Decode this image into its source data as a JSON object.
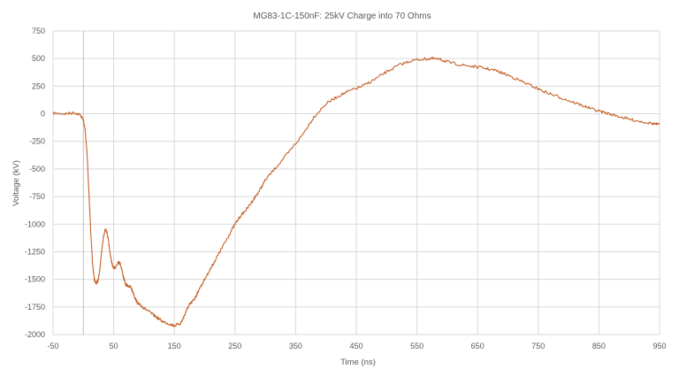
{
  "chart_data": {
    "type": "line",
    "title": "MG83-1C-150nF: 25kV Charge into 70 Ohms",
    "xlabel": "Time (ns)",
    "ylabel": "Voltage (kV)",
    "xlim": [
      -50,
      950
    ],
    "ylim": [
      -2000,
      750
    ],
    "x_ticks": [
      -50,
      50,
      150,
      250,
      350,
      450,
      550,
      650,
      750,
      850,
      950
    ],
    "y_ticks": [
      750,
      500,
      250,
      0,
      -250,
      -500,
      -750,
      -1000,
      -1250,
      -1500,
      -1750,
      -2000
    ],
    "x_tick_labels": [
      "-50",
      "50",
      "150",
      "250",
      "350",
      "450",
      "550",
      "650",
      "750",
      "850",
      "950"
    ],
    "y_tick_labels": [
      "750",
      "500",
      "250",
      "0",
      "-250",
      "-500",
      "-750",
      "-1000",
      "-1250",
      "-1500",
      "-1750",
      "-2000"
    ],
    "grid": true,
    "series_color": "#C5622A",
    "series": [
      {
        "x": [
          -50,
          -30,
          -15,
          -5,
          0,
          3,
          6,
          9,
          12,
          15,
          18,
          21,
          24,
          27,
          30,
          33,
          36,
          39,
          42,
          45,
          48,
          51,
          54,
          57,
          60,
          63,
          66,
          70,
          74,
          78,
          82,
          86,
          90,
          95,
          100,
          110,
          120,
          130,
          140,
          150,
          160,
          165,
          170,
          175,
          180,
          185,
          190,
          200,
          210,
          220,
          230,
          240,
          250,
          260,
          270,
          280,
          290,
          300,
          320,
          340,
          360,
          380,
          400,
          420,
          440,
          460,
          480,
          500,
          520,
          540,
          560,
          575,
          590,
          600,
          620,
          640,
          660,
          680,
          700,
          720,
          740,
          760,
          780,
          800,
          820,
          840,
          860,
          880,
          900,
          920,
          940,
          950
        ],
        "y": [
          5,
          0,
          10,
          -10,
          -60,
          -150,
          -350,
          -700,
          -1050,
          -1350,
          -1500,
          -1540,
          -1510,
          -1420,
          -1250,
          -1120,
          -1050,
          -1070,
          -1180,
          -1300,
          -1380,
          -1400,
          -1380,
          -1345,
          -1350,
          -1400,
          -1480,
          -1550,
          -1560,
          -1570,
          -1620,
          -1680,
          -1720,
          -1740,
          -1760,
          -1800,
          -1840,
          -1880,
          -1900,
          -1920,
          -1900,
          -1850,
          -1780,
          -1730,
          -1700,
          -1660,
          -1600,
          -1500,
          -1400,
          -1300,
          -1200,
          -1100,
          -1000,
          -920,
          -860,
          -780,
          -700,
          -600,
          -470,
          -340,
          -200,
          -30,
          90,
          160,
          210,
          250,
          310,
          380,
          440,
          480,
          495,
          500,
          490,
          470,
          445,
          430,
          415,
          390,
          350,
          300,
          250,
          200,
          160,
          120,
          80,
          40,
          10,
          -20,
          -50,
          -70,
          -90,
          -100
        ]
      }
    ]
  }
}
